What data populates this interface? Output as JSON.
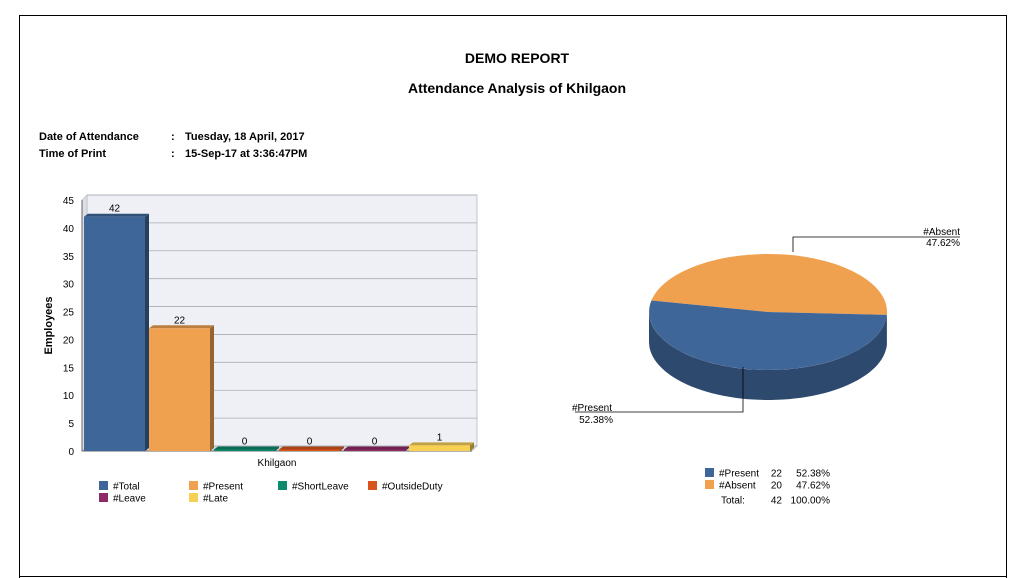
{
  "report": {
    "title": "DEMO REPORT",
    "subtitle": "Attendance Analysis of Khilgaon"
  },
  "meta": [
    {
      "label": "Date of Attendance",
      "colon": ":",
      "value": "Tuesday, 18 April, 2017"
    },
    {
      "label": "Time of Print",
      "colon": ":",
      "value": "15-Sep-17   at  3:36:47PM"
    }
  ],
  "colors": {
    "total": "#3f6699",
    "present": "#f0a14f",
    "short_leave": "#0e8a6c",
    "outside_duty": "#d9541a",
    "leave": "#8e2b66",
    "late": "#f7d054"
  },
  "chart_data": [
    {
      "type": "bar",
      "title": "",
      "xlabel": "",
      "ylabel": "Employees",
      "categories": [
        "Khilgaon"
      ],
      "ylim": [
        0,
        45
      ],
      "yticks": [
        0,
        5,
        10,
        15,
        20,
        25,
        30,
        35,
        40,
        45
      ],
      "grid": true,
      "legend_position": "bottom",
      "series": [
        {
          "name": "#Total",
          "values": [
            42
          ],
          "color": "#3f6699"
        },
        {
          "name": "#Present",
          "values": [
            22
          ],
          "color": "#f0a14f"
        },
        {
          "name": "#ShortLeave",
          "values": [
            0
          ],
          "color": "#0e8a6c"
        },
        {
          "name": "#OutsideDuty",
          "values": [
            0
          ],
          "color": "#d9541a"
        },
        {
          "name": "#Leave",
          "values": [
            0
          ],
          "color": "#8e2b66"
        },
        {
          "name": "#Late",
          "values": [
            1
          ],
          "color": "#f7d054"
        }
      ]
    },
    {
      "type": "pie",
      "title": "",
      "slices": [
        {
          "name": "#Present",
          "value": 22,
          "percent": "52.38%",
          "color": "#3f6699"
        },
        {
          "name": "#Absent",
          "value": 20,
          "percent": "47.62%",
          "color": "#f0a14f"
        }
      ],
      "total": {
        "label": "Total:",
        "value": 42,
        "percent": "100.00%"
      },
      "legend_position": "bottom"
    }
  ]
}
